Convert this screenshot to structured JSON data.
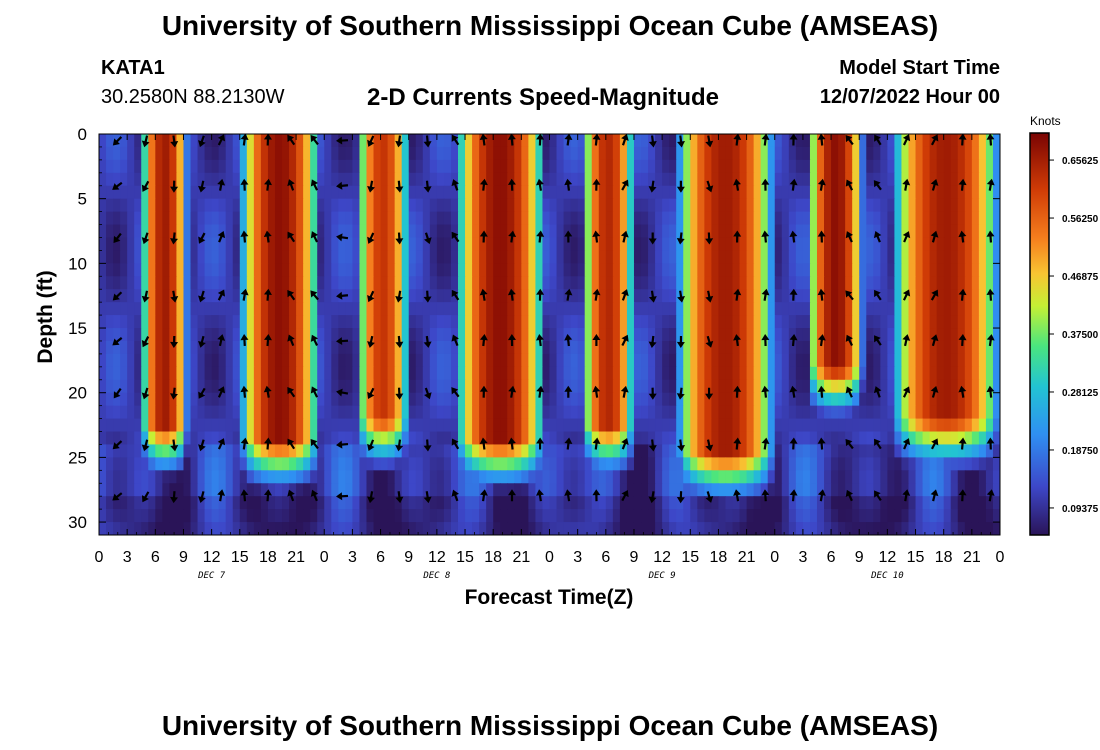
{
  "header": {
    "title": "University of Southern Mississippi Ocean Cube (AMSEAS)",
    "station": "KATA1",
    "coordinates": "30.2580N  88.2130W",
    "subtitle": "2-D Currents Speed-Magnitude",
    "model_start_label": "Model Start Time",
    "model_start_value": "12/07/2022 Hour 00"
  },
  "footer": {
    "title": "University of Southern Mississippi Ocean Cube (AMSEAS)"
  },
  "chart_data": {
    "type": "heatmap",
    "title": "2-D Currents Speed-Magnitude",
    "xlabel": "Forecast Time(Z)",
    "ylabel": "Depth (ft)",
    "x_range_hours": [
      0,
      96
    ],
    "y_range_ft": [
      0,
      31
    ],
    "x_tick_hours": [
      0,
      3,
      6,
      9,
      12,
      15,
      18,
      21,
      24,
      27,
      30,
      33,
      36,
      39,
      42,
      45,
      48,
      51,
      54,
      57,
      60,
      63,
      66,
      69,
      72,
      75,
      78,
      81,
      84,
      87,
      90,
      93,
      96
    ],
    "x_tick_labels": [
      "0",
      "3",
      "6",
      "9",
      "12",
      "15",
      "18",
      "21",
      "0",
      "3",
      "6",
      "9",
      "12",
      "15",
      "18",
      "21",
      "0",
      "3",
      "6",
      "9",
      "12",
      "15",
      "18",
      "21",
      "0",
      "3",
      "6",
      "9",
      "12",
      "15",
      "18",
      "21",
      "0"
    ],
    "y_ticks": [
      0,
      5,
      10,
      15,
      20,
      25,
      30
    ],
    "y_tick_labels": [
      "0",
      "5",
      "10",
      "15",
      "20",
      "25",
      "30"
    ],
    "day_labels": [
      {
        "hour": 12,
        "label": "DEC 7"
      },
      {
        "hour": 36,
        "label": "DEC 8"
      },
      {
        "hour": 60,
        "label": "DEC 9"
      },
      {
        "hour": 84,
        "label": "DEC 10"
      }
    ],
    "colorbar": {
      "unit": "Knots",
      "min": 0.05,
      "max": 0.7,
      "tick_values": [
        0.65625,
        0.5625,
        0.46875,
        0.375,
        0.28125,
        0.1875,
        0.09375
      ],
      "tick_labels": [
        "0.65625",
        "0.56250",
        "0.46875",
        "0.37500",
        "0.28125",
        "0.18750",
        "0.09375"
      ]
    },
    "speed_bands": [
      {
        "start_hour": 4.5,
        "end_hour": 9.5,
        "peak_knots": 0.66,
        "bottom_ft": 22.5
      },
      {
        "start_hour": 15,
        "end_hour": 23.5,
        "peak_knots": 0.68,
        "bottom_ft": 23.5
      },
      {
        "start_hour": 27.5,
        "end_hour": 33,
        "peak_knots": 0.62,
        "bottom_ft": 22
      },
      {
        "start_hour": 38,
        "end_hour": 47.5,
        "peak_knots": 0.68,
        "bottom_ft": 23.5
      },
      {
        "start_hour": 51.5,
        "end_hour": 57,
        "peak_knots": 0.64,
        "bottom_ft": 22.5
      },
      {
        "start_hour": 61.5,
        "end_hour": 72,
        "peak_knots": 0.66,
        "bottom_ft": 24.5
      },
      {
        "start_hour": 75.5,
        "end_hour": 81.5,
        "peak_knots": 0.68,
        "bottom_ft": 18
      },
      {
        "start_hour": 84.5,
        "end_hour": 96,
        "peak_knots": 0.66,
        "bottom_ft": 22
      }
    ],
    "arrow_depths_ft": [
      0.5,
      4,
      8,
      12.5,
      16,
      20,
      24,
      28
    ],
    "arrow_hours": [
      2,
      5,
      8,
      11,
      13,
      15.5,
      18,
      20.5,
      23,
      26,
      29,
      32,
      35,
      38,
      41,
      44,
      47,
      50,
      53,
      56,
      59,
      62,
      65,
      68,
      71,
      74,
      77,
      80,
      83,
      86,
      89,
      92,
      95
    ],
    "arrow_directions_deg": [
      225,
      200,
      180,
      200,
      20,
      0,
      0,
      330,
      330,
      270,
      200,
      180,
      170,
      330,
      0,
      0,
      0,
      0,
      0,
      20,
      180,
      180,
      170,
      0,
      0,
      0,
      0,
      330,
      330,
      20,
      20,
      0,
      0
    ]
  }
}
